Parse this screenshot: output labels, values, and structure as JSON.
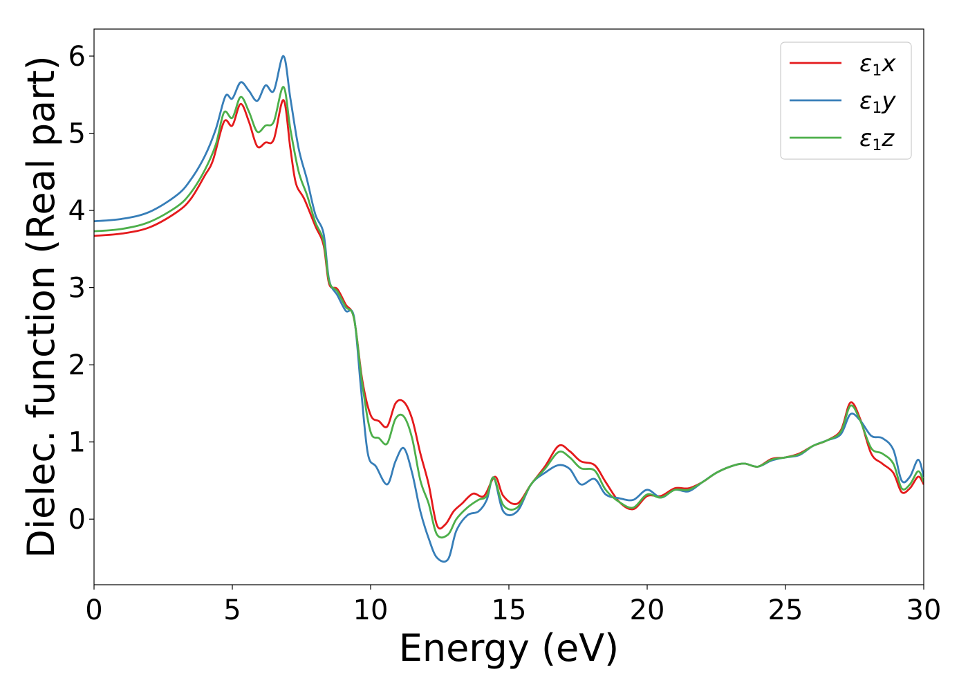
{
  "chart_data": {
    "type": "line",
    "xlabel": "Energy (eV)",
    "ylabel": "Dielec. function (Real part)",
    "xlim": [
      0,
      30
    ],
    "ylim": [
      -0.85,
      6.35
    ],
    "xticks": [
      0,
      5,
      10,
      15,
      20,
      25,
      30
    ],
    "yticks": [
      0,
      1,
      2,
      3,
      4,
      5,
      6
    ],
    "grid": false,
    "legend_position": "top-right",
    "series": [
      {
        "name": "ε1x",
        "legend": {
          "base": "ε",
          "sub": "1",
          "axis": "x"
        },
        "color": "#e41a1c",
        "points": [
          [
            0,
            3.67
          ],
          [
            1,
            3.7
          ],
          [
            2,
            3.78
          ],
          [
            3,
            3.98
          ],
          [
            3.5,
            4.15
          ],
          [
            4,
            4.45
          ],
          [
            4.3,
            4.65
          ],
          [
            4.7,
            5.15
          ],
          [
            5.0,
            5.1
          ],
          [
            5.3,
            5.38
          ],
          [
            5.6,
            5.15
          ],
          [
            5.9,
            4.83
          ],
          [
            6.2,
            4.88
          ],
          [
            6.5,
            4.92
          ],
          [
            6.85,
            5.43
          ],
          [
            7.1,
            4.8
          ],
          [
            7.3,
            4.35
          ],
          [
            7.6,
            4.15
          ],
          [
            8.0,
            3.8
          ],
          [
            8.3,
            3.55
          ],
          [
            8.5,
            3.05
          ],
          [
            8.8,
            2.98
          ],
          [
            9.1,
            2.78
          ],
          [
            9.4,
            2.6
          ],
          [
            9.7,
            1.8
          ],
          [
            10.0,
            1.35
          ],
          [
            10.3,
            1.27
          ],
          [
            10.6,
            1.2
          ],
          [
            10.9,
            1.5
          ],
          [
            11.2,
            1.52
          ],
          [
            11.5,
            1.3
          ],
          [
            11.8,
            0.85
          ],
          [
            12.1,
            0.45
          ],
          [
            12.4,
            -0.08
          ],
          [
            12.7,
            -0.07
          ],
          [
            13.0,
            0.1
          ],
          [
            13.3,
            0.2
          ],
          [
            13.7,
            0.33
          ],
          [
            14.1,
            0.3
          ],
          [
            14.5,
            0.55
          ],
          [
            14.8,
            0.3
          ],
          [
            15.3,
            0.2
          ],
          [
            15.8,
            0.45
          ],
          [
            16.3,
            0.68
          ],
          [
            16.8,
            0.95
          ],
          [
            17.2,
            0.88
          ],
          [
            17.6,
            0.75
          ],
          [
            18.1,
            0.7
          ],
          [
            18.5,
            0.48
          ],
          [
            19.0,
            0.22
          ],
          [
            19.5,
            0.13
          ],
          [
            20.0,
            0.3
          ],
          [
            20.5,
            0.3
          ],
          [
            21.0,
            0.4
          ],
          [
            21.5,
            0.4
          ],
          [
            22.0,
            0.48
          ],
          [
            22.5,
            0.6
          ],
          [
            23.0,
            0.68
          ],
          [
            23.5,
            0.72
          ],
          [
            24.0,
            0.68
          ],
          [
            24.5,
            0.78
          ],
          [
            25.0,
            0.8
          ],
          [
            25.5,
            0.85
          ],
          [
            26.0,
            0.95
          ],
          [
            26.5,
            1.02
          ],
          [
            27.0,
            1.15
          ],
          [
            27.35,
            1.51
          ],
          [
            27.7,
            1.3
          ],
          [
            28.1,
            0.85
          ],
          [
            28.5,
            0.72
          ],
          [
            28.9,
            0.6
          ],
          [
            29.2,
            0.35
          ],
          [
            29.5,
            0.4
          ],
          [
            29.8,
            0.55
          ],
          [
            30.0,
            0.45
          ]
        ]
      },
      {
        "name": "ε1y",
        "legend": {
          "base": "ε",
          "sub": "1",
          "axis": "y"
        },
        "color": "#377eb8",
        "points": [
          [
            0,
            3.86
          ],
          [
            1,
            3.89
          ],
          [
            2,
            3.98
          ],
          [
            3,
            4.2
          ],
          [
            3.5,
            4.4
          ],
          [
            4,
            4.7
          ],
          [
            4.4,
            5.05
          ],
          [
            4.75,
            5.48
          ],
          [
            5.0,
            5.45
          ],
          [
            5.3,
            5.66
          ],
          [
            5.6,
            5.55
          ],
          [
            5.9,
            5.42
          ],
          [
            6.2,
            5.62
          ],
          [
            6.5,
            5.55
          ],
          [
            6.85,
            6.0
          ],
          [
            7.1,
            5.45
          ],
          [
            7.4,
            4.8
          ],
          [
            7.7,
            4.4
          ],
          [
            8.0,
            3.95
          ],
          [
            8.3,
            3.7
          ],
          [
            8.5,
            3.1
          ],
          [
            8.8,
            2.9
          ],
          [
            9.1,
            2.7
          ],
          [
            9.4,
            2.62
          ],
          [
            9.65,
            1.7
          ],
          [
            9.9,
            0.85
          ],
          [
            10.2,
            0.68
          ],
          [
            10.6,
            0.45
          ],
          [
            10.9,
            0.75
          ],
          [
            11.2,
            0.92
          ],
          [
            11.5,
            0.6
          ],
          [
            11.8,
            0.1
          ],
          [
            12.1,
            -0.25
          ],
          [
            12.4,
            -0.5
          ],
          [
            12.8,
            -0.52
          ],
          [
            13.1,
            -0.15
          ],
          [
            13.5,
            0.05
          ],
          [
            13.9,
            0.1
          ],
          [
            14.2,
            0.25
          ],
          [
            14.45,
            0.54
          ],
          [
            14.8,
            0.1
          ],
          [
            15.3,
            0.1
          ],
          [
            15.8,
            0.45
          ],
          [
            16.3,
            0.6
          ],
          [
            16.8,
            0.7
          ],
          [
            17.2,
            0.65
          ],
          [
            17.6,
            0.45
          ],
          [
            18.1,
            0.52
          ],
          [
            18.5,
            0.32
          ],
          [
            19.0,
            0.27
          ],
          [
            19.5,
            0.25
          ],
          [
            20.0,
            0.38
          ],
          [
            20.5,
            0.28
          ],
          [
            21.0,
            0.38
          ],
          [
            21.5,
            0.36
          ],
          [
            22.0,
            0.48
          ],
          [
            22.5,
            0.6
          ],
          [
            23.0,
            0.68
          ],
          [
            23.5,
            0.72
          ],
          [
            24.0,
            0.68
          ],
          [
            24.5,
            0.76
          ],
          [
            25.0,
            0.8
          ],
          [
            25.5,
            0.83
          ],
          [
            26.0,
            0.95
          ],
          [
            26.5,
            1.02
          ],
          [
            27.0,
            1.1
          ],
          [
            27.35,
            1.36
          ],
          [
            27.7,
            1.28
          ],
          [
            28.1,
            1.08
          ],
          [
            28.5,
            1.05
          ],
          [
            28.9,
            0.9
          ],
          [
            29.2,
            0.5
          ],
          [
            29.5,
            0.55
          ],
          [
            29.8,
            0.77
          ],
          [
            30.0,
            0.55
          ]
        ]
      },
      {
        "name": "ε1z",
        "legend": {
          "base": "ε",
          "sub": "1",
          "axis": "z"
        },
        "color": "#4daf4a",
        "points": [
          [
            0,
            3.73
          ],
          [
            1,
            3.76
          ],
          [
            2,
            3.85
          ],
          [
            3,
            4.05
          ],
          [
            3.5,
            4.23
          ],
          [
            4,
            4.52
          ],
          [
            4.4,
            4.85
          ],
          [
            4.7,
            5.27
          ],
          [
            5.0,
            5.2
          ],
          [
            5.3,
            5.47
          ],
          [
            5.6,
            5.28
          ],
          [
            5.9,
            5.02
          ],
          [
            6.2,
            5.1
          ],
          [
            6.5,
            5.15
          ],
          [
            6.85,
            5.6
          ],
          [
            7.1,
            5.05
          ],
          [
            7.4,
            4.5
          ],
          [
            7.7,
            4.2
          ],
          [
            8.0,
            3.85
          ],
          [
            8.3,
            3.6
          ],
          [
            8.5,
            3.08
          ],
          [
            8.8,
            2.95
          ],
          [
            9.1,
            2.75
          ],
          [
            9.4,
            2.6
          ],
          [
            9.7,
            1.75
          ],
          [
            10.0,
            1.13
          ],
          [
            10.3,
            1.05
          ],
          [
            10.6,
            0.98
          ],
          [
            10.9,
            1.3
          ],
          [
            11.2,
            1.33
          ],
          [
            11.5,
            1.05
          ],
          [
            11.8,
            0.5
          ],
          [
            12.1,
            0.2
          ],
          [
            12.4,
            -0.2
          ],
          [
            12.8,
            -0.2
          ],
          [
            13.1,
            0.0
          ],
          [
            13.5,
            0.15
          ],
          [
            13.9,
            0.25
          ],
          [
            14.2,
            0.3
          ],
          [
            14.45,
            0.54
          ],
          [
            14.8,
            0.18
          ],
          [
            15.3,
            0.15
          ],
          [
            15.8,
            0.45
          ],
          [
            16.3,
            0.65
          ],
          [
            16.8,
            0.87
          ],
          [
            17.2,
            0.8
          ],
          [
            17.6,
            0.66
          ],
          [
            18.1,
            0.63
          ],
          [
            18.5,
            0.38
          ],
          [
            19.0,
            0.22
          ],
          [
            19.5,
            0.15
          ],
          [
            20.0,
            0.32
          ],
          [
            20.5,
            0.28
          ],
          [
            21.0,
            0.38
          ],
          [
            21.5,
            0.38
          ],
          [
            22.0,
            0.48
          ],
          [
            22.5,
            0.6
          ],
          [
            23.0,
            0.68
          ],
          [
            23.5,
            0.72
          ],
          [
            24.0,
            0.68
          ],
          [
            24.5,
            0.77
          ],
          [
            25.0,
            0.8
          ],
          [
            25.5,
            0.84
          ],
          [
            26.0,
            0.95
          ],
          [
            26.5,
            1.02
          ],
          [
            27.0,
            1.13
          ],
          [
            27.35,
            1.47
          ],
          [
            27.7,
            1.28
          ],
          [
            28.1,
            0.92
          ],
          [
            28.5,
            0.85
          ],
          [
            28.9,
            0.72
          ],
          [
            29.2,
            0.4
          ],
          [
            29.5,
            0.45
          ],
          [
            29.8,
            0.62
          ],
          [
            30.0,
            0.48
          ]
        ]
      }
    ]
  }
}
